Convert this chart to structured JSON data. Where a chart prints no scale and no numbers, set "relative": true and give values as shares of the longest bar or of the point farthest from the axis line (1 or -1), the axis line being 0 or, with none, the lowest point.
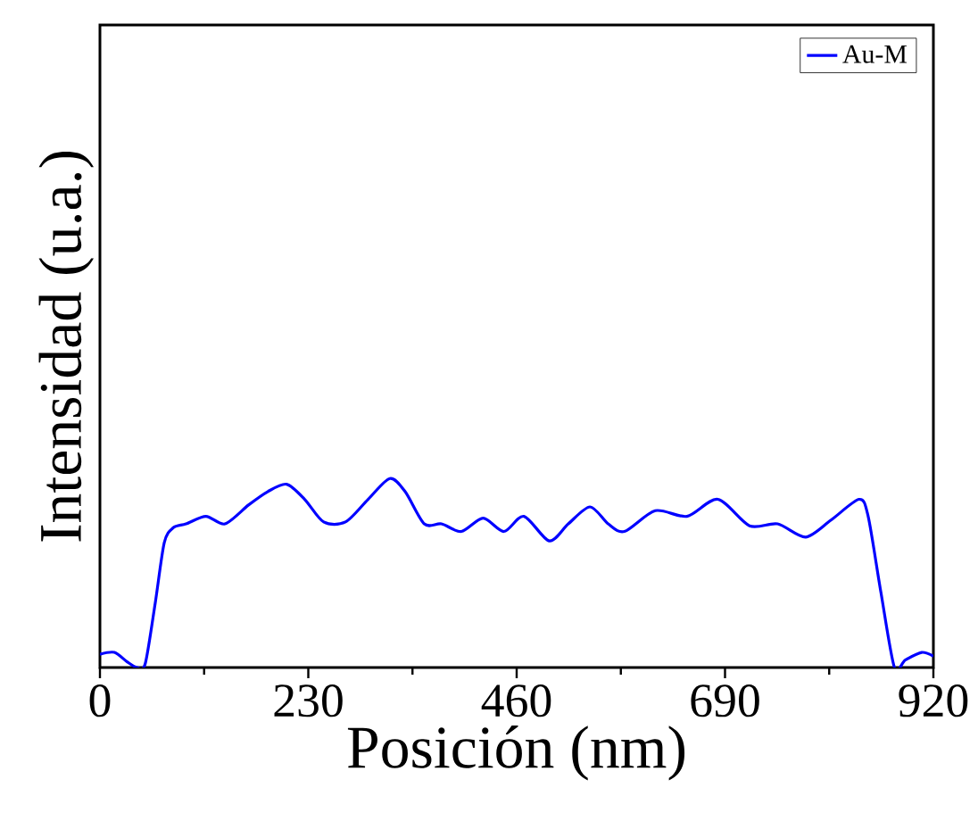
{
  "chart_data": {
    "type": "line",
    "xlabel": "Posición (nm)",
    "ylabel": "Intensidad (u.a.)",
    "relative": true,
    "xlim": [
      0,
      920
    ],
    "xticks": [
      0,
      230,
      460,
      690,
      920
    ],
    "legend": "top right",
    "series": [
      {
        "name": "Au-M",
        "color": "#0000ff",
        "x": [
          0,
          16,
          30,
          41,
          50,
          61,
          71,
          81,
          95,
          117,
          138,
          164,
          185,
          206,
          226,
          247,
          271,
          296,
          320,
          337,
          358,
          377,
          399,
          423,
          446,
          468,
          496,
          517,
          541,
          561,
          579,
          613,
          648,
          682,
          717,
          748,
          779,
          807,
          838,
          848,
          862,
          877,
          889,
          907,
          920
        ],
        "values": [
          0.07,
          0.08,
          0.03,
          0,
          0.02,
          0.34,
          0.66,
          0.74,
          0.76,
          0.8,
          0.76,
          0.86,
          0.93,
          0.97,
          0.89,
          0.77,
          0.77,
          0.89,
          1,
          0.93,
          0.76,
          0.76,
          0.72,
          0.79,
          0.72,
          0.8,
          0.67,
          0.76,
          0.85,
          0.76,
          0.72,
          0.83,
          0.8,
          0.89,
          0.75,
          0.76,
          0.69,
          0.78,
          0.89,
          0.8,
          0.4,
          0,
          0.04,
          0.08,
          0.06
        ]
      }
    ]
  }
}
